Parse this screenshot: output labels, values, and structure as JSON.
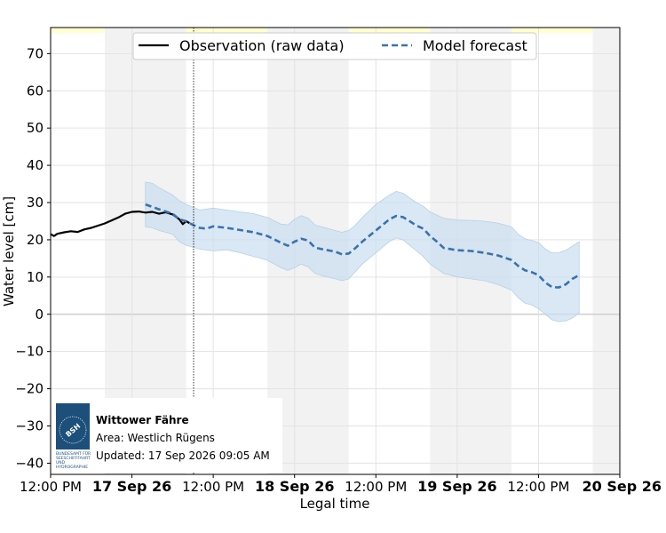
{
  "chart_data": {
    "type": "line",
    "xlabel": "Legal time",
    "ylabel": "Water level [cm]",
    "ylim": [
      -43,
      77
    ],
    "yticks": [
      70,
      60,
      50,
      40,
      30,
      20,
      10,
      0,
      -10,
      -20,
      -30,
      -40
    ],
    "ytick_labels": [
      "70",
      "60",
      "50",
      "40",
      "30",
      "20",
      "10",
      "0",
      "−10",
      "−20",
      "−30",
      "−40"
    ],
    "xlim_hours": [
      0,
      84
    ],
    "xticks": [
      {
        "t": 0,
        "label": "12:00 PM",
        "bold": false
      },
      {
        "t": 12,
        "label": "17 Sep 26",
        "bold": true
      },
      {
        "t": 24,
        "label": "12:00 PM",
        "bold": false
      },
      {
        "t": 36,
        "label": "18 Sep 26",
        "bold": true
      },
      {
        "t": 48,
        "label": "12:00 PM",
        "bold": false
      },
      {
        "t": 60,
        "label": "19 Sep 26",
        "bold": true
      },
      {
        "t": 72,
        "label": "12:00 PM",
        "bold": false
      },
      {
        "t": 84,
        "label": "20 Sep 26",
        "bold": true
      }
    ],
    "now_hour": 21.1,
    "night_bands": [
      [
        8,
        20
      ],
      [
        32,
        44
      ],
      [
        56,
        68
      ],
      [
        80,
        84
      ]
    ],
    "grid": true,
    "legend_position": "top-center",
    "colors": {
      "observation": "#000000",
      "forecast": "#3a72ad",
      "band": "#c9deef",
      "night": "#f2f2f2",
      "top_band": "#ffffd0"
    },
    "series": [
      {
        "name": "Observation (raw data)",
        "style": "solid",
        "points": [
          [
            0,
            21.5
          ],
          [
            0.5,
            21.0
          ],
          [
            1,
            21.6
          ],
          [
            2,
            22.0
          ],
          [
            3,
            22.3
          ],
          [
            4,
            22.1
          ],
          [
            5,
            22.8
          ],
          [
            6,
            23.2
          ],
          [
            7,
            23.8
          ],
          [
            8,
            24.4
          ],
          [
            9,
            25.2
          ],
          [
            10,
            26.0
          ],
          [
            11,
            27.0
          ],
          [
            12,
            27.5
          ],
          [
            13,
            27.6
          ],
          [
            14,
            27.3
          ],
          [
            15,
            27.5
          ],
          [
            16,
            27.0
          ],
          [
            17,
            27.4
          ],
          [
            18,
            26.8
          ],
          [
            19,
            25.5
          ],
          [
            19.5,
            24.2
          ],
          [
            20,
            25.0
          ],
          [
            20.5,
            24.5
          ]
        ]
      },
      {
        "name": "Model forecast",
        "style": "dashed",
        "points": [
          [
            14,
            29.5
          ],
          [
            16,
            28.2
          ],
          [
            18,
            27.0
          ],
          [
            19,
            25.5
          ],
          [
            20,
            25.0
          ],
          [
            21,
            24.0
          ],
          [
            22,
            23.2
          ],
          [
            23,
            23.0
          ],
          [
            24,
            23.6
          ],
          [
            26,
            23.2
          ],
          [
            28,
            22.6
          ],
          [
            30,
            22.0
          ],
          [
            32,
            21.0
          ],
          [
            34,
            19.2
          ],
          [
            35,
            18.4
          ],
          [
            36,
            19.5
          ],
          [
            37,
            20.3
          ],
          [
            38,
            19.8
          ],
          [
            39,
            17.9
          ],
          [
            40,
            17.5
          ],
          [
            42,
            16.8
          ],
          [
            43,
            16.1
          ],
          [
            44,
            16.3
          ],
          [
            45,
            17.8
          ],
          [
            46,
            19.5
          ],
          [
            48,
            22.5
          ],
          [
            50,
            25.5
          ],
          [
            51,
            26.4
          ],
          [
            52,
            26.1
          ],
          [
            53,
            25.0
          ],
          [
            54,
            23.8
          ],
          [
            55,
            23.0
          ],
          [
            56,
            21.0
          ],
          [
            57,
            19.5
          ],
          [
            58,
            17.8
          ],
          [
            60,
            17.2
          ],
          [
            62,
            17.0
          ],
          [
            64,
            16.5
          ],
          [
            66,
            15.8
          ],
          [
            68,
            14.6
          ],
          [
            69,
            13.0
          ],
          [
            70,
            11.8
          ],
          [
            71,
            11.3
          ],
          [
            72,
            10.5
          ],
          [
            73,
            8.5
          ],
          [
            74,
            7.3
          ],
          [
            75,
            7.2
          ],
          [
            76,
            8.0
          ],
          [
            77,
            9.5
          ],
          [
            78,
            10.5
          ]
        ]
      }
    ],
    "band_upper": [
      [
        14,
        35.5
      ],
      [
        15,
        35.2
      ],
      [
        16,
        34.0
      ],
      [
        18,
        32.0
      ],
      [
        19,
        30.5
      ],
      [
        20,
        29.5
      ],
      [
        22,
        28.0
      ],
      [
        24,
        28.5
      ],
      [
        26,
        28.0
      ],
      [
        28,
        27.5
      ],
      [
        30,
        27.0
      ],
      [
        32,
        26.0
      ],
      [
        34,
        24.2
      ],
      [
        35,
        24.0
      ],
      [
        36,
        25.5
      ],
      [
        37,
        26.5
      ],
      [
        38,
        25.8
      ],
      [
        39,
        24.0
      ],
      [
        40,
        23.5
      ],
      [
        42,
        22.5
      ],
      [
        43,
        22.0
      ],
      [
        44,
        22.5
      ],
      [
        45,
        24.0
      ],
      [
        46,
        26.0
      ],
      [
        48,
        29.5
      ],
      [
        50,
        32.0
      ],
      [
        51,
        33.0
      ],
      [
        52,
        32.5
      ],
      [
        53,
        31.2
      ],
      [
        54,
        30.0
      ],
      [
        55,
        29.0
      ],
      [
        56,
        27.5
      ],
      [
        58,
        25.8
      ],
      [
        60,
        25.3
      ],
      [
        62,
        25.2
      ],
      [
        64,
        25.0
      ],
      [
        66,
        24.5
      ],
      [
        68,
        23.5
      ],
      [
        69,
        21.5
      ],
      [
        70,
        20.3
      ],
      [
        71,
        19.8
      ],
      [
        72,
        19.3
      ],
      [
        73,
        17.5
      ],
      [
        74,
        16.5
      ],
      [
        75,
        16.5
      ],
      [
        76,
        17.2
      ],
      [
        77,
        18.3
      ],
      [
        78,
        19.5
      ]
    ],
    "band_lower": [
      [
        14,
        23.5
      ],
      [
        15,
        23.2
      ],
      [
        16,
        22.5
      ],
      [
        18,
        21.5
      ],
      [
        19,
        19.5
      ],
      [
        20,
        18.5
      ],
      [
        22,
        17.5
      ],
      [
        24,
        17.0
      ],
      [
        26,
        17.3
      ],
      [
        28,
        16.5
      ],
      [
        30,
        15.5
      ],
      [
        32,
        14.5
      ],
      [
        34,
        12.5
      ],
      [
        35,
        11.8
      ],
      [
        36,
        12.5
      ],
      [
        37,
        13.5
      ],
      [
        38,
        12.7
      ],
      [
        39,
        11.0
      ],
      [
        40,
        10.4
      ],
      [
        42,
        9.5
      ],
      [
        43,
        9.0
      ],
      [
        44,
        9.5
      ],
      [
        45,
        11.5
      ],
      [
        46,
        13.5
      ],
      [
        48,
        16.5
      ],
      [
        50,
        19.5
      ],
      [
        51,
        20.5
      ],
      [
        52,
        20.0
      ],
      [
        53,
        18.5
      ],
      [
        54,
        17.0
      ],
      [
        55,
        15.5
      ],
      [
        56,
        13.5
      ],
      [
        58,
        11.0
      ],
      [
        60,
        10.0
      ],
      [
        62,
        9.5
      ],
      [
        64,
        9.0
      ],
      [
        66,
        8.0
      ],
      [
        68,
        6.5
      ],
      [
        69,
        4.5
      ],
      [
        70,
        3.0
      ],
      [
        71,
        2.5
      ],
      [
        72,
        1.5
      ],
      [
        73,
        0.0
      ],
      [
        74,
        -1.5
      ],
      [
        75,
        -2.0
      ],
      [
        76,
        -1.8
      ],
      [
        77,
        -1.0
      ],
      [
        78,
        0.3
      ]
    ],
    "station": {
      "name": "Wittower Fähre",
      "area": "Area: Westlich Rügens",
      "updated": "Updated: 17 Sep 2026 09:05 AM",
      "logo_text": "BSH",
      "logo_caption": [
        "BUNDESAMT FÜR",
        "SEESCHIFFFAHRT",
        "UND",
        "HYDROGRAPHIE"
      ]
    }
  }
}
